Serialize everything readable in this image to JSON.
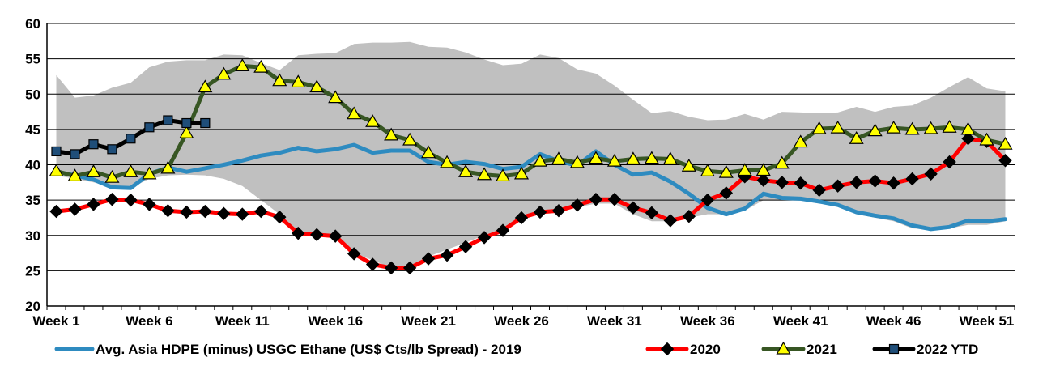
{
  "chart_data": {
    "type": "line",
    "title": "",
    "xlabel": "",
    "ylabel": "",
    "ylim": [
      20,
      60
    ],
    "yticks": [
      20,
      25,
      30,
      35,
      40,
      45,
      50,
      55,
      60
    ],
    "grid": true,
    "xtick_labels": [
      "Week 1",
      "Week 6",
      "Week 11",
      "Week 16",
      "Week 21",
      "Week 26",
      "Week 31",
      "Week 36",
      "Week 41",
      "Week 46",
      "Week 51"
    ],
    "xtick_weeks": [
      1,
      6,
      11,
      16,
      21,
      26,
      31,
      36,
      41,
      46,
      51
    ],
    "range_band": {
      "color": "#c0c0c0",
      "x": [
        1,
        2,
        3,
        4,
        5,
        6,
        7,
        8,
        9,
        10,
        11,
        12,
        13,
        14,
        15,
        16,
        17,
        18,
        19,
        20,
        21,
        22,
        23,
        24,
        25,
        26,
        27,
        28,
        29,
        30,
        31,
        32,
        33,
        34,
        35,
        36,
        37,
        38,
        39,
        40,
        41,
        42,
        43,
        44,
        45,
        46,
        47,
        48,
        49,
        50,
        51,
        52
      ],
      "upper": [
        52.7,
        49.5,
        49.8,
        50.9,
        51.6,
        53.8,
        54.6,
        54.8,
        54.8,
        55.6,
        55.5,
        54.4,
        53.4,
        55.5,
        55.7,
        55.8,
        57.1,
        57.3,
        57.3,
        57.4,
        56.7,
        56.6,
        55.9,
        54.9,
        54.1,
        54.3,
        55.6,
        55.1,
        53.5,
        52.9,
        51.2,
        49.2,
        47.3,
        47.6,
        46.8,
        46.3,
        46.4,
        47.2,
        46.4,
        47.5,
        47.4,
        47.3,
        47.4,
        48.2,
        47.5,
        48.2,
        48.4,
        49.5,
        51.0,
        52.4,
        50.8,
        50.4
      ],
      "lower": [
        38.5,
        38.0,
        37.5,
        37.0,
        36.7,
        38.0,
        38.5,
        38.6,
        38.5,
        38.0,
        37.0,
        35.0,
        33.0,
        30.5,
        30.0,
        29.5,
        27.5,
        26.5,
        25.4,
        25.4,
        27.0,
        28.0,
        29.0,
        30.0,
        30.7,
        32.5,
        33.0,
        33.5,
        34.0,
        34.5,
        34.5,
        33.0,
        32.0,
        32.0,
        32.5,
        33.0,
        33.0,
        33.5,
        35.0,
        35.0,
        35.0,
        34.5,
        34.5,
        33.0,
        32.5,
        32.0,
        31.0,
        30.8,
        31.0,
        31.5,
        31.5,
        32.0
      ]
    },
    "series": [
      {
        "name": "Avg. Asia HDPE (minus) USGC Ethane (US$ Cts/lb Spread) - 2019",
        "color": "#2e8bc0",
        "marker": "none",
        "x": [
          1,
          2,
          3,
          4,
          5,
          6,
          7,
          8,
          9,
          10,
          11,
          12,
          13,
          14,
          15,
          16,
          17,
          18,
          19,
          20,
          21,
          22,
          23,
          24,
          25,
          26,
          27,
          28,
          29,
          30,
          31,
          32,
          33,
          34,
          35,
          36,
          37,
          38,
          39,
          40,
          41,
          42,
          43,
          44,
          45,
          46,
          47,
          48,
          49,
          50,
          51,
          52
        ],
        "values": [
          39.0,
          38.5,
          37.9,
          36.8,
          36.7,
          38.7,
          39.6,
          39.0,
          39.5,
          40.0,
          40.6,
          41.3,
          41.7,
          42.4,
          41.9,
          42.2,
          42.8,
          41.7,
          42.0,
          42.0,
          40.4,
          40.0,
          40.4,
          40.1,
          39.4,
          39.7,
          41.5,
          40.5,
          39.9,
          41.9,
          40.0,
          38.6,
          38.9,
          37.6,
          35.9,
          33.9,
          33.0,
          33.8,
          35.9,
          35.3,
          35.2,
          34.8,
          34.3,
          33.3,
          32.8,
          32.4,
          31.4,
          30.9,
          31.2,
          32.1,
          32.0,
          32.3
        ]
      },
      {
        "name": "2020",
        "color": "#ff0000",
        "marker": "diamond",
        "x": [
          1,
          2,
          3,
          4,
          5,
          6,
          7,
          8,
          9,
          10,
          11,
          12,
          13,
          14,
          15,
          16,
          17,
          18,
          19,
          20,
          21,
          22,
          23,
          24,
          25,
          26,
          27,
          28,
          29,
          30,
          31,
          32,
          33,
          34,
          35,
          36,
          37,
          38,
          39,
          40,
          41,
          42,
          43,
          44,
          45,
          46,
          47,
          48,
          49,
          50,
          51,
          52
        ],
        "values": [
          33.4,
          33.7,
          34.4,
          35.1,
          35.0,
          34.4,
          33.5,
          33.3,
          33.4,
          33.1,
          33.0,
          33.4,
          32.6,
          30.3,
          30.1,
          29.9,
          27.4,
          25.9,
          25.4,
          25.4,
          26.7,
          27.2,
          28.4,
          29.7,
          30.7,
          32.5,
          33.3,
          33.5,
          34.3,
          35.1,
          35.1,
          33.9,
          33.2,
          32.1,
          32.7,
          35.0,
          36.0,
          38.3,
          37.8,
          37.5,
          37.4,
          36.4,
          37.0,
          37.5,
          37.7,
          37.4,
          38.0,
          38.7,
          40.4,
          43.7,
          43.3,
          40.6
        ]
      },
      {
        "name": "2021",
        "color": "#375623",
        "marker": "triangle",
        "marker_color": "#ffff00",
        "x": [
          1,
          2,
          3,
          4,
          5,
          6,
          7,
          8,
          9,
          10,
          11,
          12,
          13,
          14,
          15,
          16,
          17,
          18,
          19,
          20,
          21,
          22,
          23,
          24,
          25,
          26,
          27,
          28,
          29,
          30,
          31,
          32,
          33,
          34,
          35,
          36,
          37,
          38,
          39,
          40,
          41,
          42,
          43,
          44,
          45,
          46,
          47,
          48,
          49,
          50,
          51,
          52
        ],
        "values": [
          39.1,
          38.4,
          39.0,
          38.2,
          39.0,
          38.7,
          39.5,
          44.5,
          51.0,
          52.8,
          54.0,
          53.8,
          51.9,
          51.7,
          51.0,
          49.5,
          47.2,
          46.1,
          44.2,
          43.5,
          41.7,
          40.3,
          39.0,
          38.6,
          38.4,
          38.7,
          40.5,
          40.8,
          40.3,
          40.9,
          40.5,
          40.8,
          40.9,
          40.8,
          39.8,
          39.1,
          38.9,
          39.2,
          39.2,
          40.2,
          43.2,
          45.1,
          45.2,
          43.7,
          44.8,
          45.2,
          45.0,
          45.1,
          45.3,
          45.0,
          43.5,
          42.9
        ]
      },
      {
        "name": "2022 YTD",
        "color": "#000000",
        "marker": "square",
        "marker_color": "#1f4e79",
        "x": [
          1,
          2,
          3,
          4,
          5,
          6,
          7,
          8,
          9
        ],
        "values": [
          41.9,
          41.5,
          42.9,
          42.2,
          43.7,
          45.3,
          46.3,
          45.9,
          45.9
        ]
      }
    ]
  }
}
